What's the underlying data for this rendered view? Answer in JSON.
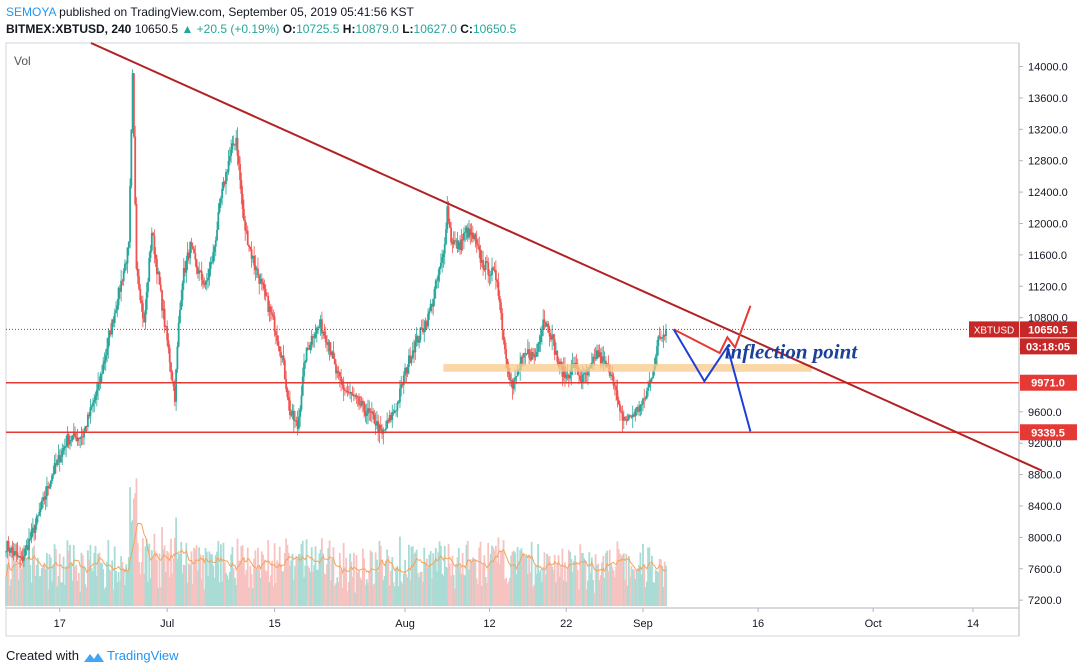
{
  "header": {
    "author": "SEMOYA",
    "published_text": "published on TradingView.com, September 05, 2019 05:41:56 KST",
    "symbol": "BITMEX:XBTUSD, 240",
    "last": "10650.5",
    "change": "▲ +20.5 (+0.19%)",
    "open_label": "O:",
    "open": "10725.5",
    "high_label": "H:",
    "high": "10879.0",
    "low_label": "L:",
    "low": "10627.0",
    "close_label": "C:",
    "close": "10650.5"
  },
  "footer": {
    "created_with": "Created with",
    "brand": "TradingView",
    "logo_icon": "tradingview-logo-icon"
  },
  "chart_data": {
    "type": "candlestick",
    "pane_label": "Vol",
    "y_ticks": [
      "14000.0",
      "13600.0",
      "13200.0",
      "12800.0",
      "12400.0",
      "12000.0",
      "11600.0",
      "11200.0",
      "10800.0",
      "10400.0",
      "10000.0",
      "9600.0",
      "9200.0",
      "8800.0",
      "8400.0",
      "8000.0",
      "7600.0",
      "7200.0"
    ],
    "y_tick_values": [
      14000,
      13600,
      13200,
      12800,
      12400,
      12000,
      11600,
      11200,
      10800,
      10400,
      10000,
      9600,
      9200,
      8800,
      8400,
      8000,
      7600,
      7200
    ],
    "x_ticks": [
      "17",
      "Jul",
      "15",
      "Aug",
      "12",
      "22",
      "Sep",
      "16",
      "Oct",
      "14"
    ],
    "x_tick_dates": [
      "2019-06-17",
      "2019-07-01",
      "2019-07-15",
      "2019-08-01",
      "2019-08-12",
      "2019-08-22",
      "2019-09-01",
      "2019-09-16",
      "2019-10-01",
      "2019-10-14"
    ],
    "price_path": [
      [
        "2019-06-10",
        7900
      ],
      [
        "2019-06-12",
        7700
      ],
      [
        "2019-06-14",
        8200
      ],
      [
        "2019-06-16",
        8800
      ],
      [
        "2019-06-18",
        9250
      ],
      [
        "2019-06-20",
        9300
      ],
      [
        "2019-06-22",
        9900
      ],
      [
        "2019-06-24",
        10800
      ],
      [
        "2019-06-26",
        11700
      ],
      [
        "2019-06-26T12",
        13850
      ],
      [
        "2019-06-27",
        11500
      ],
      [
        "2019-06-28",
        10700
      ],
      [
        "2019-06-29",
        11900
      ],
      [
        "2019-06-30",
        11200
      ],
      [
        "2019-07-01",
        10500
      ],
      [
        "2019-07-02",
        9800
      ],
      [
        "2019-07-02T12",
        10700
      ],
      [
        "2019-07-03",
        11300
      ],
      [
        "2019-07-04",
        11700
      ],
      [
        "2019-07-05",
        11400
      ],
      [
        "2019-07-06",
        11200
      ],
      [
        "2019-07-07",
        11600
      ],
      [
        "2019-07-08",
        12300
      ],
      [
        "2019-07-09",
        12800
      ],
      [
        "2019-07-10",
        13100
      ],
      [
        "2019-07-11",
        12000
      ],
      [
        "2019-07-12",
        11600
      ],
      [
        "2019-07-13",
        11300
      ],
      [
        "2019-07-14",
        11000
      ],
      [
        "2019-07-15",
        10700
      ],
      [
        "2019-07-16",
        10300
      ],
      [
        "2019-07-17",
        9600
      ],
      [
        "2019-07-18",
        9400
      ],
      [
        "2019-07-19",
        10300
      ],
      [
        "2019-07-20",
        10600
      ],
      [
        "2019-07-21",
        10700
      ],
      [
        "2019-07-22",
        10500
      ],
      [
        "2019-07-23",
        10100
      ],
      [
        "2019-07-24",
        9900
      ],
      [
        "2019-07-25",
        9800
      ],
      [
        "2019-07-26",
        9700
      ],
      [
        "2019-07-27",
        9600
      ],
      [
        "2019-07-28",
        9500
      ],
      [
        "2019-07-29",
        9300
      ],
      [
        "2019-07-30",
        9500
      ],
      [
        "2019-07-31",
        9700
      ],
      [
        "2019-08-01",
        10100
      ],
      [
        "2019-08-02",
        10400
      ],
      [
        "2019-08-03",
        10600
      ],
      [
        "2019-08-04",
        10800
      ],
      [
        "2019-08-05",
        11200
      ],
      [
        "2019-08-06",
        11600
      ],
      [
        "2019-08-06T12",
        12200
      ],
      [
        "2019-08-07",
        11800
      ],
      [
        "2019-08-08",
        11700
      ],
      [
        "2019-08-09",
        11900
      ],
      [
        "2019-08-10",
        11800
      ],
      [
        "2019-08-11",
        11500
      ],
      [
        "2019-08-12",
        11400
      ],
      [
        "2019-08-13",
        11300
      ],
      [
        "2019-08-14",
        10400
      ],
      [
        "2019-08-15",
        9900
      ],
      [
        "2019-08-16",
        10200
      ],
      [
        "2019-08-17",
        10350
      ],
      [
        "2019-08-18",
        10300
      ],
      [
        "2019-08-19",
        10800
      ],
      [
        "2019-08-20",
        10600
      ],
      [
        "2019-08-21",
        10200
      ],
      [
        "2019-08-22",
        10050
      ],
      [
        "2019-08-23",
        10200
      ],
      [
        "2019-08-24",
        10000
      ],
      [
        "2019-08-25",
        10100
      ],
      [
        "2019-08-26",
        10350
      ],
      [
        "2019-08-27",
        10200
      ],
      [
        "2019-08-28",
        10100
      ],
      [
        "2019-08-29",
        9550
      ],
      [
        "2019-08-30",
        9500
      ],
      [
        "2019-08-31",
        9600
      ],
      [
        "2019-09-01",
        9700
      ],
      [
        "2019-09-02",
        10000
      ],
      [
        "2019-09-03",
        10500
      ],
      [
        "2019-09-04",
        10650.5
      ]
    ],
    "volume_ma_visible": true,
    "drawings": {
      "trendline": {
        "from": [
          "2019-06-10",
          14300
        ],
        "to": [
          "2019-10-23",
          8850
        ],
        "color": "#b22222"
      },
      "horizontal_lines": [
        {
          "label": "9971.0",
          "value": 9971.0,
          "color": "#e53935"
        },
        {
          "label": "9339.5",
          "value": 9339.5,
          "color": "#e53935"
        }
      ],
      "current_price": {
        "symbol": "XBTUSD",
        "value": 10650.5,
        "label": "10650.5",
        "countdown": "03:18:05",
        "color": "#c62828"
      },
      "zone": {
        "from": [
          "2019-08-06",
          10210
        ],
        "to": [
          "2019-09-23",
          10110
        ],
        "color": "#f8c98a"
      },
      "annotation": {
        "text": "inflection point",
        "at": [
          "2019-09-14",
          10280
        ],
        "color": "#1a3f9c"
      },
      "scenario_up": {
        "points": [
          [
            "2019-09-05",
            10650
          ],
          [
            "2019-09-11",
            10350
          ],
          [
            "2019-09-12",
            10550
          ],
          [
            "2019-09-13",
            10420
          ],
          [
            "2019-09-15",
            10950
          ]
        ],
        "color": "#e53935"
      },
      "scenario_down": {
        "points": [
          [
            "2019-09-05",
            10650
          ],
          [
            "2019-09-09",
            9990
          ],
          [
            "2019-09-12",
            10430
          ],
          [
            "2019-09-15",
            9350
          ]
        ],
        "color": "#1d3fd8"
      }
    },
    "axis": {
      "y_min": 7100,
      "y_max": 14300,
      "x_min": "2019-06-10",
      "x_max": "2019-10-20",
      "grid": false
    }
  }
}
